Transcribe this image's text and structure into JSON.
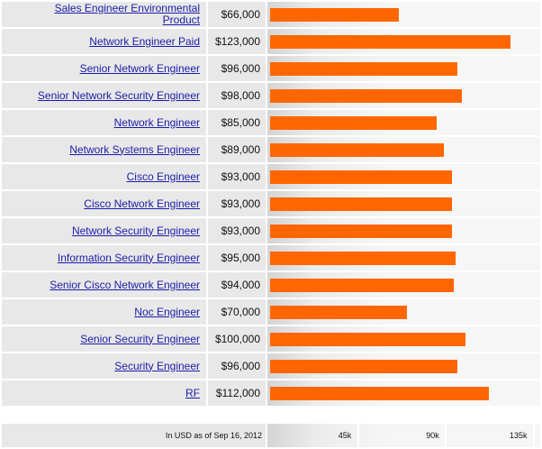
{
  "chart_data": {
    "type": "bar",
    "orientation": "horizontal",
    "categories": [
      "Sales Engineer Environmental Product",
      "Network Engineer Paid",
      "Senior Network Engineer",
      "Senior Network Security Engineer",
      "Network Engineer",
      "Network Systems Engineer",
      "Cisco Engineer",
      "Cisco Network Engineer",
      "Network Security Engineer",
      "Information Security Engineer",
      "Senior Cisco Network Engineer",
      "Noc Engineer",
      "Senior Security Engineer",
      "Security Engineer",
      "RF"
    ],
    "values": [
      66000,
      123000,
      96000,
      98000,
      85000,
      89000,
      93000,
      93000,
      93000,
      95000,
      94000,
      70000,
      100000,
      96000,
      112000
    ],
    "value_labels": [
      "$66,000",
      "$123,000",
      "$96,000",
      "$98,000",
      "$85,000",
      "$89,000",
      "$93,000",
      "$93,000",
      "$93,000",
      "$95,000",
      "$94,000",
      "$70,000",
      "$100,000",
      "$96,000",
      "$112,000"
    ],
    "xlim": [
      0,
      135000
    ],
    "ticks": [
      45000,
      90000,
      135000
    ],
    "tick_labels": [
      "45k",
      "90k",
      "135k"
    ],
    "footnote": "In USD as of Sep 16, 2012",
    "bar_color": "#ff6600",
    "link_color": "#1c1ca8"
  }
}
